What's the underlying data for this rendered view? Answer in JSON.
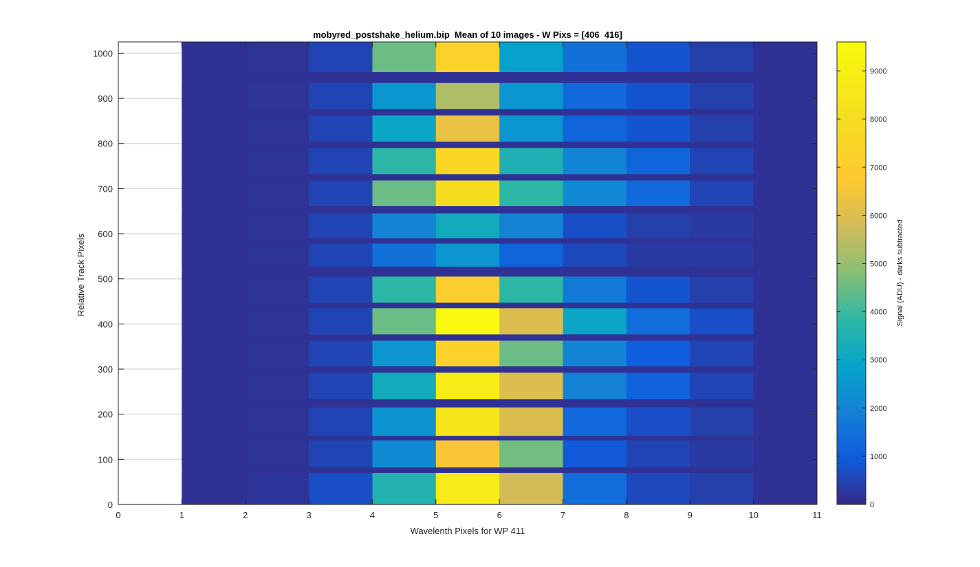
{
  "chart_data": {
    "type": "heatmap",
    "title": "mobyred_postshake_helium.bip  Mean of 10 images - W Pixs = [406  416]",
    "xlabel": "Wavelenth Pixels for WP 411",
    "ylabel": "Relative Track Pixels",
    "xlim": [
      0,
      11
    ],
    "ylim": [
      0,
      1025
    ],
    "xticks": [
      0,
      1,
      2,
      3,
      4,
      5,
      6,
      7,
      8,
      9,
      10,
      11
    ],
    "yticks": [
      0,
      100,
      200,
      300,
      400,
      500,
      600,
      700,
      800,
      900,
      1000
    ],
    "grid": "y-major",
    "colormap": "parula",
    "colorbar": {
      "label": "Signal (ADU) - darks subtracted",
      "range": [
        0,
        9600
      ],
      "ticks": [
        0,
        1000,
        2000,
        3000,
        4000,
        5000,
        6000,
        7000,
        8000,
        9000
      ]
    },
    "data_x_extent": [
      1,
      11
    ],
    "data_y_extent": [
      0,
      1025
    ],
    "background_value": 150,
    "column_centers": [
      1.5,
      2.5,
      3.5,
      4.5,
      5.5,
      6.5,
      7.5,
      8.5,
      9.5,
      10.5
    ],
    "fibers": [
      {
        "y_range": [
          1,
          70
        ],
        "values": [
          150,
          200,
          700,
          3600,
          8800,
          5800,
          1400,
          600,
          400,
          150
        ]
      },
      {
        "y_range": [
          82,
          142
        ],
        "values": [
          150,
          170,
          500,
          2200,
          6600,
          4600,
          900,
          500,
          300,
          150
        ]
      },
      {
        "y_range": [
          152,
          215
        ],
        "values": [
          150,
          170,
          500,
          2400,
          8400,
          6000,
          1300,
          700,
          400,
          150
        ]
      },
      {
        "y_range": [
          233,
          292
        ],
        "values": [
          150,
          170,
          500,
          3200,
          8800,
          6000,
          1900,
          1100,
          500,
          150
        ]
      },
      {
        "y_range": [
          306,
          363
        ],
        "values": [
          150,
          170,
          500,
          2500,
          7300,
          4500,
          2000,
          1000,
          500,
          150
        ]
      },
      {
        "y_range": [
          377,
          435
        ],
        "values": [
          150,
          170,
          500,
          4500,
          9500,
          6000,
          3000,
          1400,
          700,
          150
        ]
      },
      {
        "y_range": [
          447,
          505
        ],
        "values": [
          150,
          170,
          500,
          3800,
          7000,
          3800,
          1700,
          800,
          400,
          150
        ]
      },
      {
        "y_range": [
          527,
          578
        ],
        "values": [
          150,
          170,
          500,
          1500,
          2500,
          1200,
          600,
          300,
          300,
          150
        ]
      },
      {
        "y_range": [
          590,
          645
        ],
        "values": [
          150,
          170,
          500,
          2000,
          3200,
          2000,
          700,
          400,
          300,
          150
        ]
      },
      {
        "y_range": [
          661,
          718
        ],
        "values": [
          150,
          170,
          500,
          4500,
          8000,
          3800,
          2100,
          1300,
          500,
          150
        ]
      },
      {
        "y_range": [
          732,
          790
        ],
        "values": [
          150,
          170,
          500,
          3800,
          7700,
          3500,
          2000,
          1200,
          500,
          150
        ]
      },
      {
        "y_range": [
          804,
          862
        ],
        "values": [
          150,
          170,
          500,
          3000,
          6300,
          2500,
          1200,
          800,
          400,
          150
        ]
      },
      {
        "y_range": [
          876,
          934
        ],
        "values": [
          150,
          170,
          500,
          2500,
          5300,
          2500,
          1300,
          800,
          400,
          150
        ]
      },
      {
        "y_range": [
          958,
          1025
        ],
        "values": [
          150,
          170,
          500,
          4500,
          7300,
          2800,
          1500,
          800,
          400,
          150
        ]
      }
    ]
  }
}
